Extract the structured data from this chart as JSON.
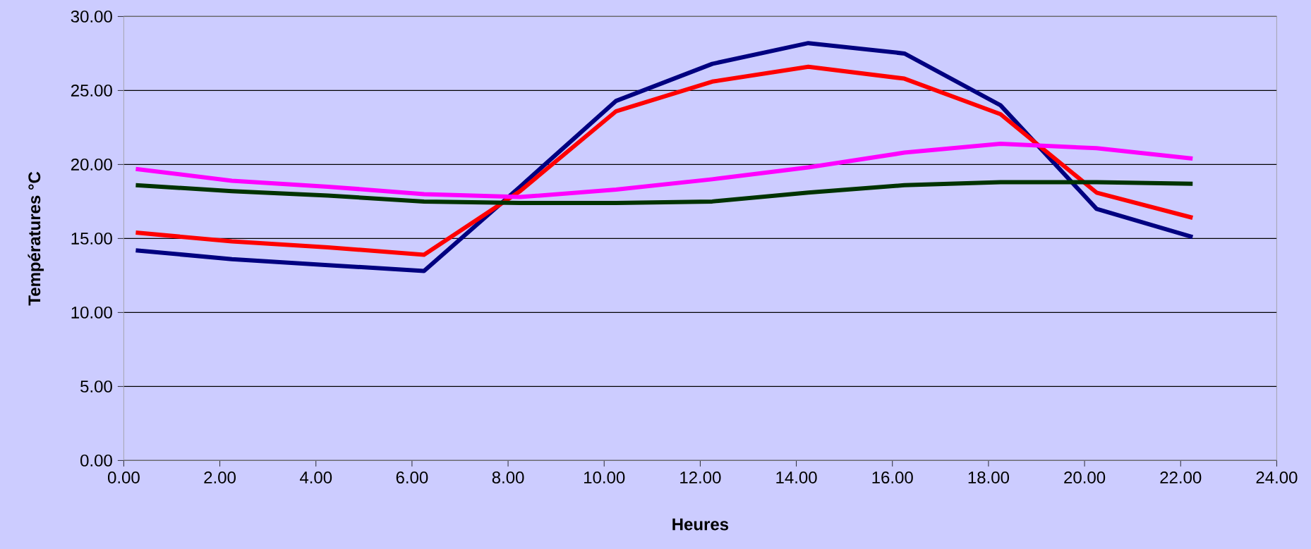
{
  "chart_data": {
    "type": "line",
    "xlabel": "Heures",
    "ylabel": "Températures °C",
    "x": [
      0.25,
      2.25,
      4.25,
      6.25,
      8.25,
      10.25,
      12.25,
      14.25,
      16.25,
      18.25,
      20.25,
      22.25
    ],
    "series": [
      {
        "color": "#000080",
        "values": [
          14.2,
          13.6,
          13.2,
          12.8,
          18.5,
          24.3,
          26.8,
          28.2,
          27.5,
          24.0,
          17.0,
          15.1
        ]
      },
      {
        "color": "#ff0000",
        "values": [
          15.4,
          14.8,
          14.4,
          13.9,
          18.2,
          23.6,
          25.6,
          26.6,
          25.8,
          23.4,
          18.1,
          16.4
        ]
      },
      {
        "color": "#ff00ff",
        "values": [
          19.7,
          18.9,
          18.5,
          18.0,
          17.8,
          18.3,
          19.0,
          19.8,
          20.8,
          21.4,
          21.1,
          20.4
        ]
      },
      {
        "color": "#003300",
        "values": [
          18.6,
          18.2,
          17.9,
          17.5,
          17.4,
          17.4,
          17.5,
          18.1,
          18.6,
          18.8,
          18.8,
          18.7
        ]
      }
    ],
    "xlim": [
      0,
      24
    ],
    "ylim": [
      0,
      30
    ],
    "xticks": [
      {
        "value": 0,
        "label": "0.00"
      },
      {
        "value": 2,
        "label": "2.00"
      },
      {
        "value": 4,
        "label": "4.00"
      },
      {
        "value": 6,
        "label": "6.00"
      },
      {
        "value": 8,
        "label": "8.00"
      },
      {
        "value": 10,
        "label": "10.00"
      },
      {
        "value": 12,
        "label": "12.00"
      },
      {
        "value": 14,
        "label": "14.00"
      },
      {
        "value": 16,
        "label": "16.00"
      },
      {
        "value": 18,
        "label": "18.00"
      },
      {
        "value": 20,
        "label": "20.00"
      },
      {
        "value": 22,
        "label": "22.00"
      },
      {
        "value": 24,
        "label": "24.00"
      }
    ],
    "yticks": [
      {
        "value": 0,
        "label": "0.00"
      },
      {
        "value": 5,
        "label": "5.00"
      },
      {
        "value": 10,
        "label": "10.00"
      },
      {
        "value": 15,
        "label": "15.00"
      },
      {
        "value": 20,
        "label": "20.00"
      },
      {
        "value": 25,
        "label": "25.00"
      },
      {
        "value": 30,
        "label": "30.00"
      }
    ],
    "grid": "y",
    "marker": "none",
    "line_style": "solid"
  }
}
